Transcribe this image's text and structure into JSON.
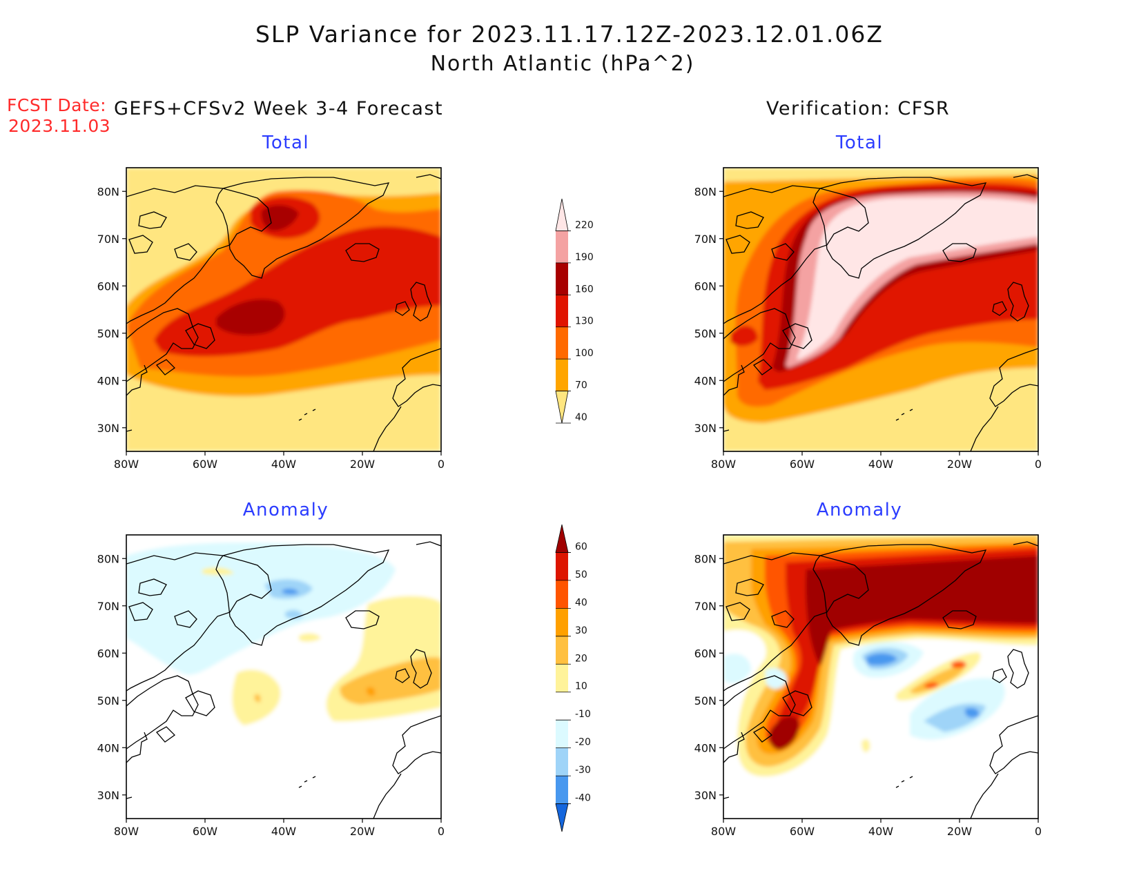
{
  "header": {
    "title_line1": "SLP Variance for 2023.11.17.12Z-2023.12.01.06Z",
    "title_line2": "North Atlantic (hPa^2)",
    "fcst_label": "FCST Date:",
    "fcst_date": "2023.11.03",
    "left_column": "GEFS+CFSv2 Week 3-4 Forecast",
    "right_column": "Verification: CFSR"
  },
  "panels": {
    "fc_total": "Total",
    "vf_total": "Total",
    "fc_anom": "Anomaly",
    "vf_anom": "Anomaly"
  },
  "axes": {
    "x_ticks": [
      "80W",
      "60W",
      "40W",
      "20W",
      "0"
    ],
    "y_ticks": [
      "80N",
      "70N",
      "60N",
      "50N",
      "40N",
      "30N"
    ]
  },
  "colorbars": {
    "total": {
      "levels": [
        "220",
        "190",
        "160",
        "130",
        "100",
        "70",
        "40"
      ],
      "colors": [
        "#ffe6e6",
        "#f4a2a2",
        "#a80000",
        "#e01400",
        "#ff6a00",
        "#ffa500",
        "#ffe680"
      ]
    },
    "anomaly": {
      "levels": [
        "60",
        "50",
        "40",
        "30",
        "20",
        "10",
        "-10",
        "-20",
        "-30",
        "-40"
      ],
      "colors": [
        "#a00000",
        "#dd1500",
        "#ff5500",
        "#ffa000",
        "#ffc040",
        "#fff39a",
        "#ffffff",
        "#dcfaff",
        "#9fd4f8",
        "#4898ef",
        "#1466dd"
      ]
    }
  }
}
